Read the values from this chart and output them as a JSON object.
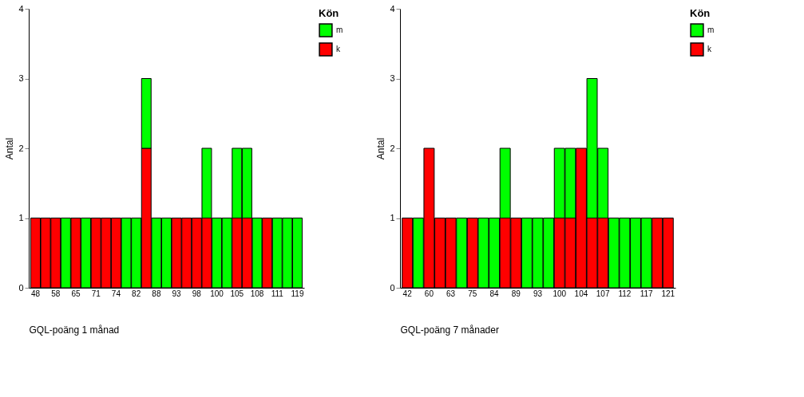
{
  "chart_data": [
    {
      "type": "bar",
      "stacked": true,
      "xlabel": "GQL-poäng 1 månad",
      "ylabel": "Antal",
      "legend_title": "Kön",
      "legend": "right",
      "grid": false,
      "categories": [
        "48",
        null,
        "58",
        null,
        "65",
        null,
        "71",
        null,
        "74",
        null,
        "82",
        null,
        "88",
        null,
        "93",
        null,
        "98",
        null,
        "100",
        null,
        "105",
        null,
        "108",
        null,
        "111",
        null,
        "119"
      ],
      "series": [
        {
          "name": "k",
          "color": "#ff0000",
          "values": [
            1,
            1,
            1,
            null,
            1,
            null,
            1,
            1,
            1,
            null,
            null,
            2,
            null,
            null,
            1,
            1,
            1,
            1,
            null,
            null,
            1,
            1,
            null,
            1,
            null,
            null,
            null
          ]
        },
        {
          "name": "m",
          "color": "#00ff00",
          "values": [
            null,
            null,
            null,
            1,
            null,
            1,
            null,
            null,
            null,
            1,
            1,
            1,
            1,
            1,
            null,
            null,
            null,
            1,
            1,
            1,
            1,
            1,
            1,
            null,
            1,
            1,
            1
          ]
        }
      ],
      "ylim": [
        0,
        4
      ],
      "yticks": [
        0,
        1,
        2,
        3,
        4
      ]
    },
    {
      "type": "bar",
      "stacked": true,
      "xlabel": "GQL-poäng 7 månader",
      "ylabel": "Antal",
      "legend_title": "Kön",
      "legend": "right",
      "grid": false,
      "categories": [
        "42",
        null,
        "60",
        null,
        "63",
        null,
        "75",
        null,
        "84",
        null,
        "89",
        null,
        "93",
        null,
        "100",
        null,
        "104",
        null,
        "107",
        null,
        "112",
        null,
        "117",
        null,
        "121"
      ],
      "series": [
        {
          "name": "k",
          "color": "#ff0000",
          "values": [
            1,
            null,
            2,
            1,
            1,
            null,
            1,
            null,
            null,
            1,
            1,
            null,
            null,
            null,
            1,
            1,
            2,
            1,
            1,
            null,
            null,
            null,
            null,
            1,
            1
          ]
        },
        {
          "name": "m",
          "color": "#00ff00",
          "values": [
            null,
            1,
            null,
            null,
            null,
            1,
            null,
            1,
            1,
            1,
            null,
            1,
            1,
            1,
            1,
            1,
            null,
            2,
            1,
            1,
            1,
            1,
            1,
            null,
            null
          ]
        }
      ],
      "ylim": [
        0,
        4
      ],
      "yticks": [
        0,
        1,
        2,
        3,
        4
      ]
    }
  ]
}
